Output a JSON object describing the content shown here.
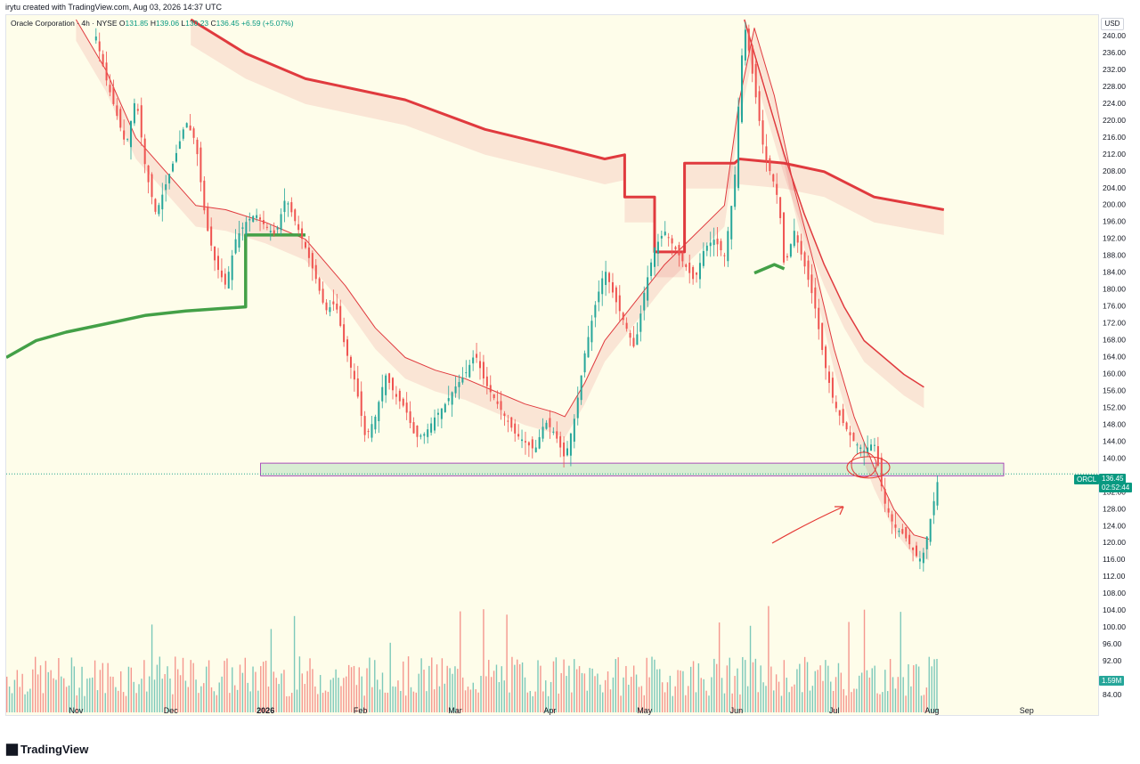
{
  "header": {
    "credit": "irytu created with TradingView.com, Aug 03, 2026 14:37 UTC"
  },
  "legend": {
    "symbol": "Oracle Corporation · 4h · NYSE",
    "o_label": "O",
    "o": "131.85",
    "h_label": "H",
    "h": "139.06",
    "l_label": "L",
    "l": "130.23",
    "c_label": "C",
    "c": "136.45",
    "change": "+6.59 (+5.07%)"
  },
  "axis": {
    "currency": "USD"
  },
  "tags": {
    "ticker": "ORCL",
    "price": "136.45",
    "countdown": "02:52:44",
    "volume": "1.59M"
  },
  "footer": {
    "brand": "TradingView"
  },
  "colors": {
    "up": "#26a69a",
    "down": "#ef5350",
    "ema_red": "#e03a3e",
    "vwap_green": "#43a047",
    "zone": "#c8e6c9",
    "bg": "#fefdea"
  },
  "chart_data": {
    "type": "candlestick",
    "symbol": "ORCL",
    "timeframe": "4h",
    "exchange": "NYSE",
    "ylim": [
      80,
      244
    ],
    "yticks": [
      84,
      88,
      92,
      96,
      100,
      104,
      108,
      112,
      116,
      120,
      124,
      128,
      132,
      136,
      140,
      144,
      148,
      152,
      156,
      160,
      164,
      168,
      172,
      176,
      180,
      184,
      188,
      192,
      196,
      200,
      204,
      208,
      212,
      216,
      220,
      224,
      228,
      232,
      236,
      240
    ],
    "ytick_labels": [
      "84.00",
      "88.00",
      "92.00",
      "96.00",
      "100.00",
      "104.00",
      "108.00",
      "112.00",
      "116.00",
      "120.00",
      "124.00",
      "128.00",
      "132.00",
      "136.00",
      "140.00",
      "144.00",
      "148.00",
      "152.00",
      "156.00",
      "160.00",
      "164.00",
      "168.00",
      "172.00",
      "176.00",
      "180.00",
      "184.00",
      "188.00",
      "192.00",
      "196.00",
      "200.00",
      "204.00",
      "208.00",
      "212.00",
      "216.00",
      "220.00",
      "224.00",
      "228.00",
      "232.00",
      "236.00",
      "240.00"
    ],
    "x_ticks": [
      {
        "label": "Nov",
        "t": 0.07
      },
      {
        "label": "Dec",
        "t": 0.165
      },
      {
        "label": "2026",
        "t": 0.26,
        "bold": true
      },
      {
        "label": "Feb",
        "t": 0.355
      },
      {
        "label": "Mar",
        "t": 0.45
      },
      {
        "label": "Apr",
        "t": 0.545
      },
      {
        "label": "May",
        "t": 0.64
      },
      {
        "label": "Jun",
        "t": 0.732
      },
      {
        "label": "Jul",
        "t": 0.83
      },
      {
        "label": "Aug",
        "t": 0.928
      },
      {
        "label": "Sep",
        "t": 1.023
      }
    ],
    "price_path": [
      [
        0.09,
        240
      ],
      [
        0.1,
        230
      ],
      [
        0.11,
        222
      ],
      [
        0.12,
        214
      ],
      [
        0.13,
        226
      ],
      [
        0.14,
        208
      ],
      [
        0.15,
        198
      ],
      [
        0.16,
        205
      ],
      [
        0.17,
        212
      ],
      [
        0.18,
        220
      ],
      [
        0.19,
        215
      ],
      [
        0.2,
        196
      ],
      [
        0.21,
        186
      ],
      [
        0.22,
        181
      ],
      [
        0.23,
        192
      ],
      [
        0.24,
        196
      ],
      [
        0.25,
        198
      ],
      [
        0.26,
        195
      ],
      [
        0.27,
        193
      ],
      [
        0.28,
        202
      ],
      [
        0.29,
        196
      ],
      [
        0.3,
        190
      ],
      [
        0.31,
        183
      ],
      [
        0.32,
        175
      ],
      [
        0.33,
        177
      ],
      [
        0.34,
        166
      ],
      [
        0.35,
        158
      ],
      [
        0.36,
        145
      ],
      [
        0.37,
        150
      ],
      [
        0.38,
        160
      ],
      [
        0.39,
        155
      ],
      [
        0.4,
        152
      ],
      [
        0.41,
        145
      ],
      [
        0.42,
        146
      ],
      [
        0.43,
        150
      ],
      [
        0.44,
        153
      ],
      [
        0.45,
        157
      ],
      [
        0.46,
        160
      ],
      [
        0.47,
        165
      ],
      [
        0.48,
        158
      ],
      [
        0.49,
        154
      ],
      [
        0.5,
        150
      ],
      [
        0.51,
        146
      ],
      [
        0.52,
        144
      ],
      [
        0.53,
        142
      ],
      [
        0.54,
        149
      ],
      [
        0.55,
        146
      ],
      [
        0.56,
        140
      ],
      [
        0.57,
        150
      ],
      [
        0.58,
        165
      ],
      [
        0.59,
        176
      ],
      [
        0.6,
        185
      ],
      [
        0.61,
        178
      ],
      [
        0.62,
        172
      ],
      [
        0.63,
        166
      ],
      [
        0.64,
        180
      ],
      [
        0.65,
        190
      ],
      [
        0.66,
        194
      ],
      [
        0.67,
        190
      ],
      [
        0.68,
        186
      ],
      [
        0.69,
        182
      ],
      [
        0.7,
        190
      ],
      [
        0.71,
        192
      ],
      [
        0.72,
        188
      ],
      [
        0.73,
        205
      ],
      [
        0.735,
        228
      ],
      [
        0.74,
        243
      ],
      [
        0.745,
        236
      ],
      [
        0.75,
        228
      ],
      [
        0.76,
        212
      ],
      [
        0.77,
        205
      ],
      [
        0.775,
        200
      ],
      [
        0.78,
        185
      ],
      [
        0.79,
        194
      ],
      [
        0.8,
        186
      ],
      [
        0.81,
        177
      ],
      [
        0.82,
        163
      ],
      [
        0.83,
        153
      ],
      [
        0.84,
        148
      ],
      [
        0.85,
        144
      ],
      [
        0.86,
        142
      ],
      [
        0.87,
        144
      ],
      [
        0.875,
        137
      ],
      [
        0.88,
        130
      ],
      [
        0.89,
        124
      ],
      [
        0.9,
        122
      ],
      [
        0.91,
        118
      ],
      [
        0.915,
        116
      ],
      [
        0.92,
        118
      ],
      [
        0.925,
        124
      ],
      [
        0.93,
        130
      ],
      [
        0.935,
        136.45
      ]
    ],
    "indicators": {
      "ema_slow": [
        [
          0.185,
          244
        ],
        [
          0.24,
          236
        ],
        [
          0.3,
          230
        ],
        [
          0.4,
          225
        ],
        [
          0.48,
          218
        ],
        [
          0.55,
          214
        ],
        [
          0.6,
          211
        ],
        [
          0.62,
          212
        ],
        [
          0.62,
          202
        ],
        [
          0.65,
          202
        ],
        [
          0.65,
          189
        ],
        [
          0.68,
          189
        ],
        [
          0.68,
          210
        ],
        [
          0.73,
          210
        ],
        [
          0.735,
          211
        ],
        [
          0.78,
          210
        ],
        [
          0.82,
          208
        ],
        [
          0.87,
          202
        ],
        [
          0.94,
          199
        ]
      ],
      "ema_mid": [
        [
          0.74,
          244
        ],
        [
          0.76,
          228
        ],
        [
          0.78,
          212
        ],
        [
          0.8,
          198
        ],
        [
          0.82,
          186
        ],
        [
          0.84,
          176
        ],
        [
          0.86,
          168
        ],
        [
          0.88,
          164
        ],
        [
          0.9,
          160
        ],
        [
          0.92,
          157
        ]
      ],
      "ema_fast": [
        [
          0.07,
          244
        ],
        [
          0.1,
          232
        ],
        [
          0.13,
          216
        ],
        [
          0.16,
          208
        ],
        [
          0.19,
          200
        ],
        [
          0.22,
          199
        ],
        [
          0.26,
          196
        ],
        [
          0.3,
          192
        ],
        [
          0.34,
          181
        ],
        [
          0.37,
          171
        ],
        [
          0.4,
          164
        ],
        [
          0.43,
          161
        ],
        [
          0.46,
          159
        ],
        [
          0.49,
          156
        ],
        [
          0.52,
          153
        ],
        [
          0.55,
          151
        ],
        [
          0.56,
          150
        ],
        [
          0.58,
          158
        ],
        [
          0.6,
          168
        ],
        [
          0.63,
          177
        ],
        [
          0.66,
          186
        ],
        [
          0.69,
          193
        ],
        [
          0.72,
          200
        ],
        [
          0.735,
          225
        ],
        [
          0.75,
          242
        ],
        [
          0.77,
          226
        ],
        [
          0.79,
          204
        ],
        [
          0.81,
          186
        ],
        [
          0.83,
          166
        ],
        [
          0.85,
          150
        ],
        [
          0.87,
          138
        ],
        [
          0.89,
          128
        ],
        [
          0.91,
          122
        ],
        [
          0.925,
          121
        ]
      ],
      "vwap": [
        [
          0,
          164
        ],
        [
          0.03,
          168
        ],
        [
          0.06,
          170
        ],
        [
          0.1,
          172
        ],
        [
          0.14,
          174
        ],
        [
          0.18,
          175
        ],
        [
          0.24,
          176
        ],
        [
          0.24,
          193
        ],
        [
          0.3,
          193
        ]
      ],
      "vwap2": [
        [
          0.75,
          184
        ],
        [
          0.77,
          186
        ],
        [
          0.78,
          185
        ]
      ]
    },
    "support_zone": [
      136,
      139
    ],
    "annotation": "arrow pointing to breakdown near 138"
  }
}
